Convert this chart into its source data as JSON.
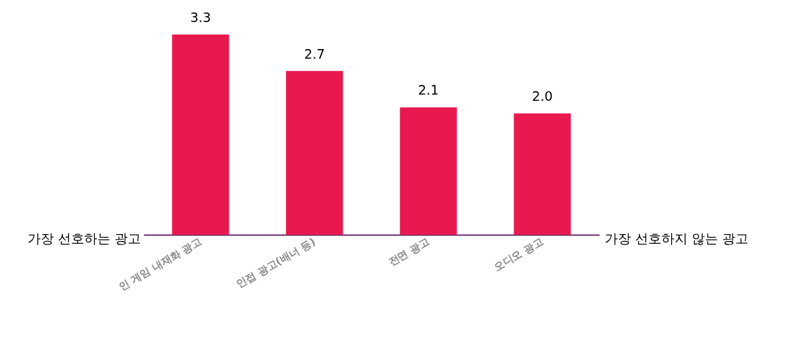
{
  "chart_data": {
    "type": "bar",
    "categories": [
      "인 게임 내재화 광고",
      "인접 광고(배너 등)",
      "전면 광고",
      "오디오 광고"
    ],
    "values": [
      3.3,
      2.7,
      2.1,
      2.0
    ],
    "color": "#e8194f",
    "value_labels": [
      "3.3",
      "2.7",
      "2.1",
      "2.0"
    ],
    "tick_labels": "x",
    "annotations": [
      "가장 선호하는 광고",
      "가장 선호하지 않는 광고"
    ]
  }
}
